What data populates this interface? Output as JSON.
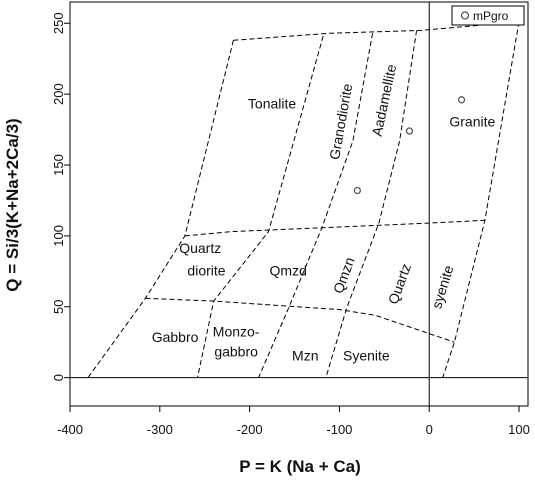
{
  "chart_data": {
    "type": "scatter",
    "title": "",
    "xlabel": "P = K  (Na + Ca)",
    "ylabel": "Q = Si/3(K+Na+2Ca/3)",
    "xlim": [
      -400,
      110
    ],
    "ylim": [
      -20,
      265
    ],
    "x_ticks": [
      -400,
      -300,
      -200,
      -100,
      0,
      100
    ],
    "x_tick_labels": [
      "-400",
      "-300",
      "-200",
      "-100",
      "0",
      "100"
    ],
    "y_ticks": [
      0,
      50,
      100,
      150,
      200,
      250
    ],
    "y_tick_labels": [
      "0",
      "50",
      "100",
      "150",
      "200",
      "250"
    ],
    "grid": false,
    "legend_position": "top-right",
    "series": [
      {
        "name": "mPgro",
        "marker": "open-circle",
        "color": "#555555",
        "points": [
          {
            "x": -80,
            "y": 132
          },
          {
            "x": -22,
            "y": 174
          },
          {
            "x": 36,
            "y": 196
          }
        ]
      }
    ],
    "reference_lines": {
      "zero_x": 0,
      "zero_y": 0
    },
    "field_boundaries": [
      {
        "points": [
          [
            -218,
            238
          ],
          [
            -110,
            243
          ],
          [
            -9,
            245
          ],
          [
            100,
            251
          ]
        ]
      },
      {
        "points": [
          [
            -272,
            100
          ],
          [
            -220,
            103
          ],
          [
            -110,
            106
          ],
          [
            0,
            109
          ],
          [
            62,
            111
          ]
        ]
      },
      {
        "points": [
          [
            -316,
            56
          ],
          [
            -240,
            54
          ],
          [
            -100,
            48
          ],
          [
            -60,
            44
          ],
          [
            28,
            25
          ]
        ]
      },
      {
        "points": [
          [
            -218,
            238
          ],
          [
            -272,
            100
          ],
          [
            -316,
            56
          ],
          [
            -380,
            0
          ]
        ]
      },
      {
        "points": [
          [
            -118,
            241
          ],
          [
            -179,
            103
          ],
          [
            -240,
            54
          ],
          [
            -258,
            0
          ]
        ]
      },
      {
        "points": [
          [
            -63,
            243
          ],
          [
            -85,
            167
          ],
          [
            -120,
            105
          ],
          [
            -158,
            47
          ],
          [
            -190,
            0
          ]
        ]
      },
      {
        "points": [
          [
            -14,
            245
          ],
          [
            -33,
            167
          ],
          [
            -56,
            109
          ],
          [
            -92,
            49
          ],
          [
            -115,
            0
          ]
        ]
      },
      {
        "points": [
          [
            100,
            251
          ],
          [
            62,
            111
          ],
          [
            28,
            25
          ],
          [
            15,
            0
          ]
        ]
      }
    ],
    "field_labels": [
      {
        "text": "Tonalite",
        "x": -175,
        "y": 190,
        "rotation": 0
      },
      {
        "text": "Granodiorite",
        "x": -93,
        "y": 180,
        "rotation": -80
      },
      {
        "text": "Aadamellite",
        "x": -45,
        "y": 195,
        "rotation": -78
      },
      {
        "text": "Granite",
        "x": 48,
        "y": 177,
        "rotation": 0
      },
      {
        "text": "Quartz",
        "x": -255,
        "y": 88,
        "rotation": 0
      },
      {
        "text": "diorite",
        "x": -248,
        "y": 72,
        "rotation": 0
      },
      {
        "text": "Qmzd",
        "x": -157,
        "y": 72,
        "rotation": 0
      },
      {
        "text": "Qmzn",
        "x": -90,
        "y": 71,
        "rotation": -70
      },
      {
        "text": "Quartz",
        "x": -28,
        "y": 65,
        "rotation": -70
      },
      {
        "text": "syenite",
        "x": 20,
        "y": 63,
        "rotation": -73
      },
      {
        "text": "Gabbro",
        "x": -283,
        "y": 25,
        "rotation": 0
      },
      {
        "text": "Monzo-",
        "x": -215,
        "y": 29,
        "rotation": 0
      },
      {
        "text": "gabbro",
        "x": -215,
        "y": 15,
        "rotation": 0
      },
      {
        "text": "Mzn",
        "x": -138,
        "y": 12,
        "rotation": 0
      },
      {
        "text": "Syenite",
        "x": -70,
        "y": 12,
        "rotation": 0
      }
    ]
  }
}
